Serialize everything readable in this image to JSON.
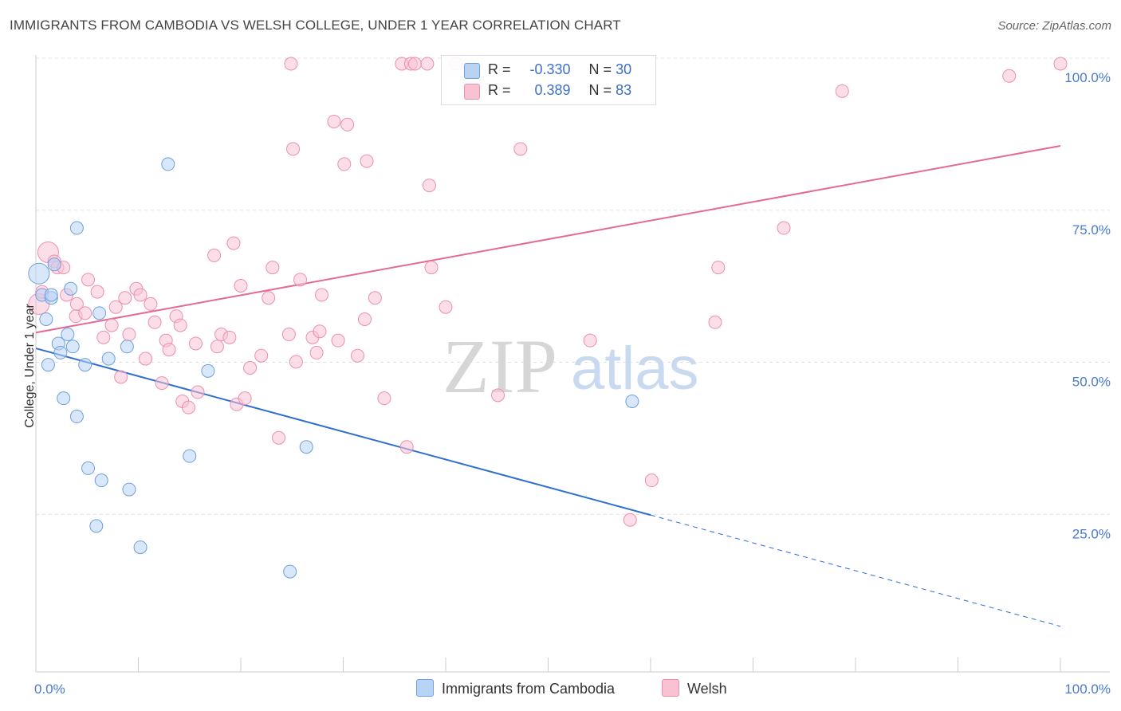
{
  "header": {
    "title": "IMMIGRANTS FROM CAMBODIA VS WELSH COLLEGE, UNDER 1 YEAR CORRELATION CHART",
    "source": "Source: ZipAtlas.com"
  },
  "legend": {
    "blue": {
      "r_label": "R =",
      "r_value": "-0.330",
      "n_label": "N =",
      "n_value": "30"
    },
    "pink": {
      "r_label": "R =",
      "r_value": "0.389",
      "n_label": "N =",
      "n_value": "83"
    }
  },
  "watermark": {
    "zip": "ZIP",
    "atlas": "atlas"
  },
  "colors": {
    "blue_fill": "#b9d3f5",
    "blue_stroke": "#6f9fdc",
    "blue_line": "#2f6fcf",
    "pink_fill": "#f8c2d3",
    "pink_stroke": "#ec8fae",
    "pink_line": "#e46a94",
    "tick_label": "#4a7bd0"
  },
  "chart_data": {
    "type": "scatter",
    "title": "IMMIGRANTS FROM CAMBODIA VS WELSH COLLEGE, UNDER 1 YEAR CORRELATION CHART",
    "xlabel": "",
    "ylabel": "College, Under 1 year",
    "x_tick_labels": [
      "0.0%",
      "100.0%"
    ],
    "y_tick_labels": [
      "25.0%",
      "50.0%",
      "75.0%",
      "100.0%"
    ],
    "xlim": [
      0,
      100
    ],
    "ylim": [
      0,
      102
    ],
    "grid": true,
    "legend_position": "bottom",
    "series": [
      {
        "name": "Immigrants from Cambodia",
        "color": "#6f9fdc",
        "points": [
          [
            0.3,
            65.5
          ],
          [
            0.6,
            62.0
          ],
          [
            1.0,
            58.0
          ],
          [
            1.2,
            50.5
          ],
          [
            1.5,
            61.5
          ],
          [
            1.8,
            67.0
          ],
          [
            2.2,
            54.0
          ],
          [
            2.4,
            52.5
          ],
          [
            2.7,
            45.0
          ],
          [
            3.1,
            55.5
          ],
          [
            3.4,
            63.0
          ],
          [
            3.6,
            53.5
          ],
          [
            4.0,
            42.0
          ],
          [
            4.8,
            50.5
          ],
          [
            5.1,
            33.5
          ],
          [
            5.9,
            24.0
          ],
          [
            6.4,
            31.5
          ],
          [
            6.2,
            59.0
          ],
          [
            7.1,
            51.5
          ],
          [
            8.9,
            53.5
          ],
          [
            9.1,
            30.0
          ],
          [
            10.2,
            20.5
          ],
          [
            12.9,
            83.5
          ],
          [
            15.0,
            35.5
          ],
          [
            16.8,
            49.5
          ],
          [
            24.8,
            16.5
          ],
          [
            26.4,
            37.0
          ],
          [
            58.2,
            44.5
          ],
          [
            4.0,
            73.0
          ],
          [
            1.5,
            62.0
          ]
        ],
        "trend": {
          "x0": 0,
          "y0": 53.2,
          "x1": 60,
          "y1": 25.8,
          "dashed_to_x": 100,
          "dashed_to_y": 7.5
        }
      },
      {
        "name": "Welsh",
        "color": "#ec8fae",
        "points": [
          [
            0.3,
            60.5
          ],
          [
            0.6,
            62.5
          ],
          [
            1.2,
            69.0
          ],
          [
            1.8,
            67.5
          ],
          [
            2.1,
            66.5
          ],
          [
            2.7,
            66.5
          ],
          [
            3.0,
            62.0
          ],
          [
            3.9,
            58.5
          ],
          [
            4.0,
            60.5
          ],
          [
            4.8,
            59.0
          ],
          [
            5.1,
            64.5
          ],
          [
            6.0,
            62.5
          ],
          [
            6.6,
            55.0
          ],
          [
            7.4,
            57.0
          ],
          [
            7.8,
            60.0
          ],
          [
            8.3,
            48.5
          ],
          [
            8.7,
            61.5
          ],
          [
            9.1,
            55.5
          ],
          [
            9.8,
            63.0
          ],
          [
            10.2,
            62.0
          ],
          [
            10.7,
            51.5
          ],
          [
            11.2,
            60.5
          ],
          [
            11.6,
            57.5
          ],
          [
            12.3,
            47.5
          ],
          [
            12.7,
            54.5
          ],
          [
            13.0,
            53.0
          ],
          [
            13.7,
            58.5
          ],
          [
            14.1,
            57.0
          ],
          [
            14.3,
            44.5
          ],
          [
            14.9,
            43.5
          ],
          [
            15.6,
            54.0
          ],
          [
            15.8,
            46.0
          ],
          [
            17.4,
            68.5
          ],
          [
            17.7,
            53.5
          ],
          [
            18.1,
            55.5
          ],
          [
            18.9,
            55.0
          ],
          [
            19.3,
            70.5
          ],
          [
            19.6,
            44.0
          ],
          [
            20.0,
            63.5
          ],
          [
            20.4,
            45.0
          ],
          [
            20.9,
            50.0
          ],
          [
            22.0,
            52.0
          ],
          [
            22.7,
            61.5
          ],
          [
            23.1,
            66.5
          ],
          [
            23.7,
            38.5
          ],
          [
            24.7,
            55.5
          ],
          [
            24.9,
            100.0
          ],
          [
            25.1,
            86.0
          ],
          [
            25.4,
            51.0
          ],
          [
            25.8,
            64.5
          ],
          [
            27.0,
            55.0
          ],
          [
            27.4,
            52.5
          ],
          [
            27.7,
            56.0
          ],
          [
            27.9,
            62.0
          ],
          [
            29.1,
            90.5
          ],
          [
            29.5,
            54.5
          ],
          [
            30.1,
            83.5
          ],
          [
            30.4,
            90.0
          ],
          [
            31.4,
            52.0
          ],
          [
            32.1,
            58.0
          ],
          [
            32.3,
            84.0
          ],
          [
            33.1,
            61.5
          ],
          [
            34.0,
            45.0
          ],
          [
            35.7,
            100.0
          ],
          [
            36.2,
            37.0
          ],
          [
            36.6,
            100.0
          ],
          [
            37.0,
            100.0
          ],
          [
            38.2,
            100.0
          ],
          [
            38.4,
            80.0
          ],
          [
            38.6,
            66.5
          ],
          [
            40.0,
            60.0
          ],
          [
            41.0,
            100.0
          ],
          [
            45.1,
            45.5
          ],
          [
            47.3,
            86.0
          ],
          [
            54.1,
            54.5
          ],
          [
            58.0,
            25.0
          ],
          [
            60.1,
            31.5
          ],
          [
            66.3,
            57.5
          ],
          [
            66.6,
            66.5
          ],
          [
            73.0,
            73.0
          ],
          [
            78.7,
            95.5
          ],
          [
            95.0,
            98.0
          ],
          [
            100.0,
            100.0
          ]
        ],
        "trend": {
          "x0": 0,
          "y0": 55.8,
          "x1": 100,
          "y1": 86.5
        }
      }
    ]
  },
  "bottom_legend": {
    "blue_label": "Immigrants from Cambodia",
    "pink_label": "Welsh"
  }
}
